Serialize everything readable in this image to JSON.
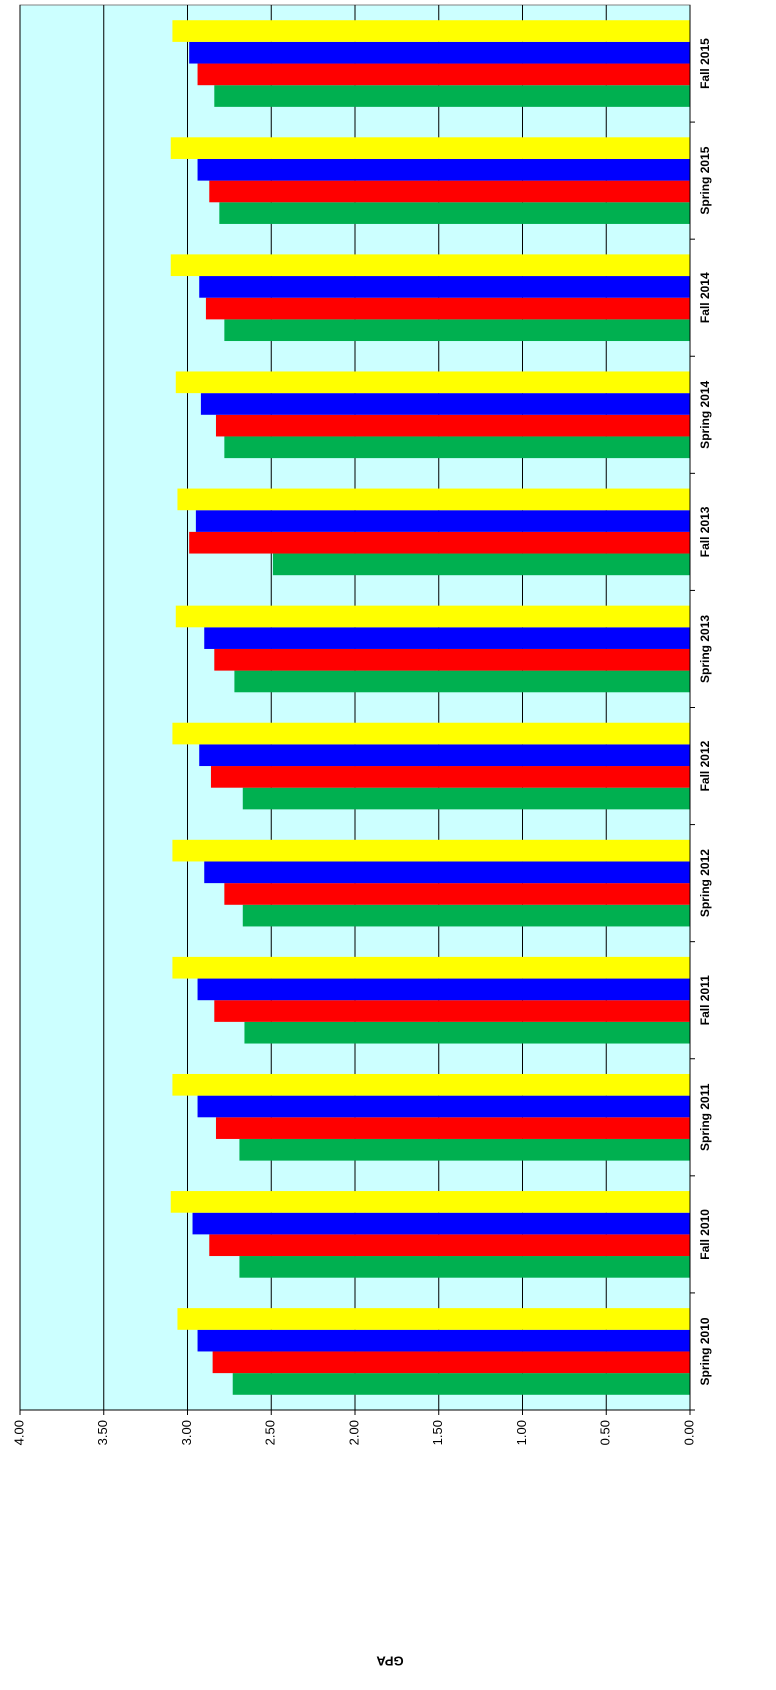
{
  "chart_data": {
    "type": "bar",
    "y_label": "GPA",
    "categories": [
      "Spring 2010",
      "Fall 2010",
      "Spring 2011",
      "Fall 2011",
      "Spring 2012",
      "Fall 2012",
      "Spring 2013",
      "Fall 2013",
      "Spring 2014",
      "Fall 2014",
      "Spring 2015",
      "Fall 2015"
    ],
    "series": [
      {
        "color": "#00b050",
        "values": [
          2.73,
          2.69,
          2.69,
          2.66,
          2.67,
          2.67,
          2.72,
          2.49,
          2.78,
          2.78,
          2.81,
          2.84
        ]
      },
      {
        "color": "#ff0000",
        "values": [
          2.85,
          2.87,
          2.83,
          2.84,
          2.78,
          2.86,
          2.84,
          2.99,
          2.83,
          2.89,
          2.87,
          2.94
        ]
      },
      {
        "color": "#0000ff",
        "values": [
          2.94,
          2.97,
          2.94,
          2.94,
          2.9,
          2.93,
          2.9,
          2.95,
          2.92,
          2.93,
          2.94,
          2.99
        ]
      },
      {
        "color": "#ffff00",
        "values": [
          3.06,
          3.1,
          3.09,
          3.09,
          3.09,
          3.09,
          3.07,
          3.06,
          3.07,
          3.1,
          3.1,
          3.09
        ]
      }
    ],
    "ylim": [
      0,
      4
    ],
    "yticks": [
      {
        "value": 0,
        "label": "0.00"
      },
      {
        "value": 0.5,
        "label": "0.50"
      },
      {
        "value": 1,
        "label": "1.00"
      },
      {
        "value": 1.5,
        "label": "1.50"
      },
      {
        "value": 2,
        "label": "2.00"
      },
      {
        "value": 2.5,
        "label": "2.50"
      },
      {
        "value": 3,
        "label": "3.00"
      },
      {
        "value": 3.5,
        "label": "3.50"
      },
      {
        "value": 4,
        "label": "4.00"
      }
    ],
    "grid": true,
    "background": "#ccffff"
  }
}
